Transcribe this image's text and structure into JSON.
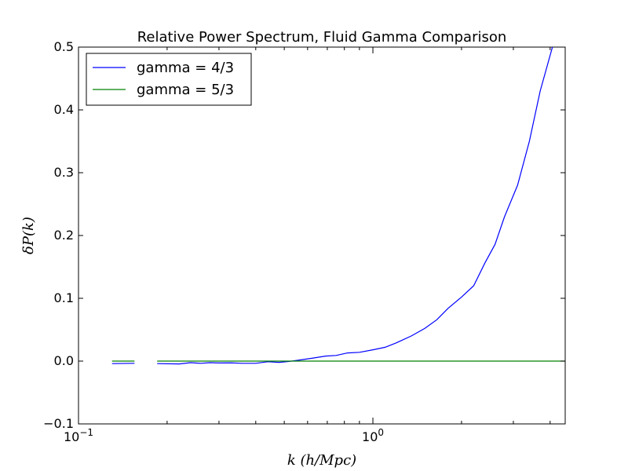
{
  "chart_data": {
    "type": "line",
    "title": "Relative Power Spectrum, Fluid Gamma Comparison",
    "xlabel": "k (h/Mpc)",
    "ylabel": "δP(k)",
    "xscale": "log",
    "xlim": [
      0.1,
      4.5
    ],
    "ylim": [
      -0.1,
      0.5
    ],
    "x_ticks": [
      {
        "value": 0.1,
        "base": "10",
        "exp": "−1"
      },
      {
        "value": 1,
        "base": "10",
        "exp": "0"
      }
    ],
    "y_ticks": [
      {
        "value": -0.1,
        "label": "−0.1"
      },
      {
        "value": 0.0,
        "label": "0.0"
      },
      {
        "value": 0.1,
        "label": "0.1"
      },
      {
        "value": 0.2,
        "label": "0.2"
      },
      {
        "value": 0.3,
        "label": "0.3"
      },
      {
        "value": 0.4,
        "label": "0.4"
      },
      {
        "value": 0.5,
        "label": "0.5"
      }
    ],
    "grid": false,
    "legend_position": "top-left",
    "series": [
      {
        "name": "gamma = 4/3",
        "color": "#0000ff",
        "segments": [
          {
            "x": [
              0.13,
              0.155
            ],
            "y": [
              -0.004,
              -0.0035
            ]
          },
          {
            "x": [
              0.185,
              0.22,
              0.24,
              0.26,
              0.28,
              0.3,
              0.33,
              0.36,
              0.4,
              0.44,
              0.48,
              0.52,
              0.57,
              0.63,
              0.69,
              0.75,
              0.82,
              0.9,
              1.0,
              1.1,
              1.2,
              1.35,
              1.5,
              1.65,
              1.8,
              2.0,
              2.2,
              2.4,
              2.6,
              2.8,
              3.1,
              3.4,
              3.7,
              4.1
            ],
            "y": [
              -0.004,
              -0.0045,
              -0.0025,
              -0.0035,
              -0.0025,
              -0.003,
              -0.0028,
              -0.0035,
              -0.0035,
              -0.001,
              -0.002,
              -0.0005,
              0.002,
              0.005,
              0.008,
              0.009,
              0.013,
              0.014,
              0.018,
              0.022,
              0.029,
              0.04,
              0.052,
              0.066,
              0.084,
              0.102,
              0.12,
              0.156,
              0.186,
              0.23,
              0.28,
              0.35,
              0.43,
              0.505
            ]
          }
        ]
      },
      {
        "name": "gamma = 5/3",
        "color": "#008000",
        "segments": [
          {
            "x": [
              0.13,
              0.155
            ],
            "y": [
              0.0,
              0.0
            ]
          },
          {
            "x": [
              0.185,
              4.5
            ],
            "y": [
              0.0,
              0.0
            ]
          }
        ]
      }
    ]
  }
}
